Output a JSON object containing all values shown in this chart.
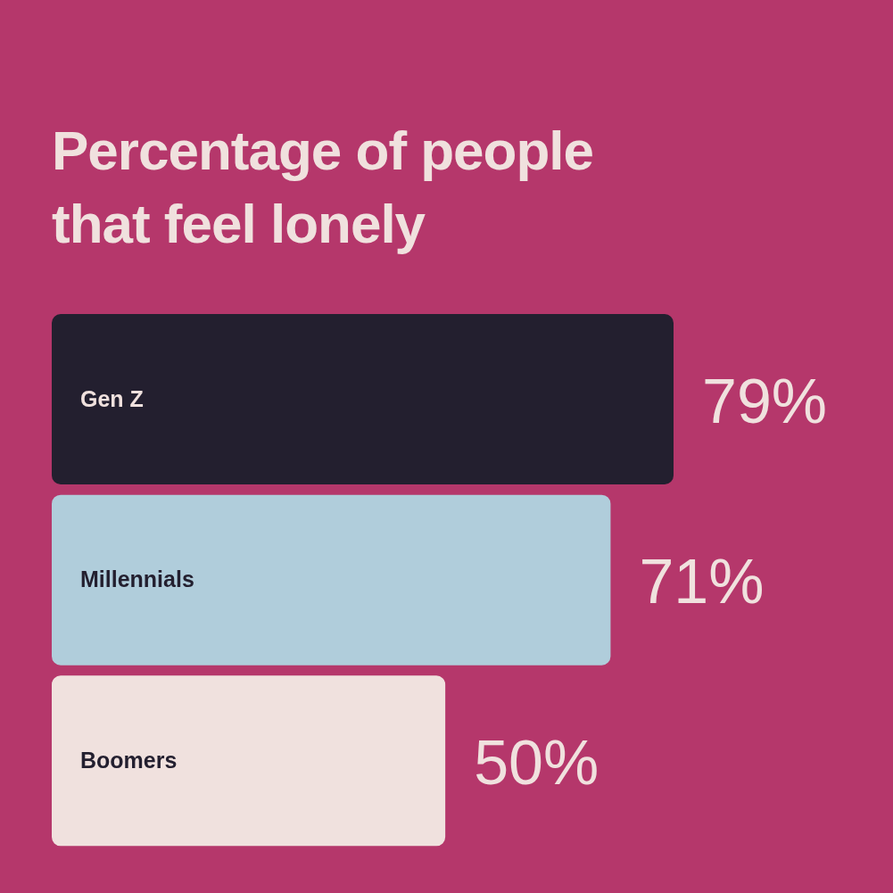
{
  "chart_data": {
    "type": "bar",
    "title": "Percentage of people that feel lonely",
    "orientation": "horizontal",
    "categories": [
      "Gen Z",
      "Millennials",
      "Boomers"
    ],
    "values": [
      79,
      71,
      50
    ],
    "colors": [
      "#231f2f",
      "#b0cddb",
      "#f0e1de"
    ],
    "value_labels": [
      "79%",
      "71%",
      "50%"
    ],
    "tick_labels": "y"
  }
}
